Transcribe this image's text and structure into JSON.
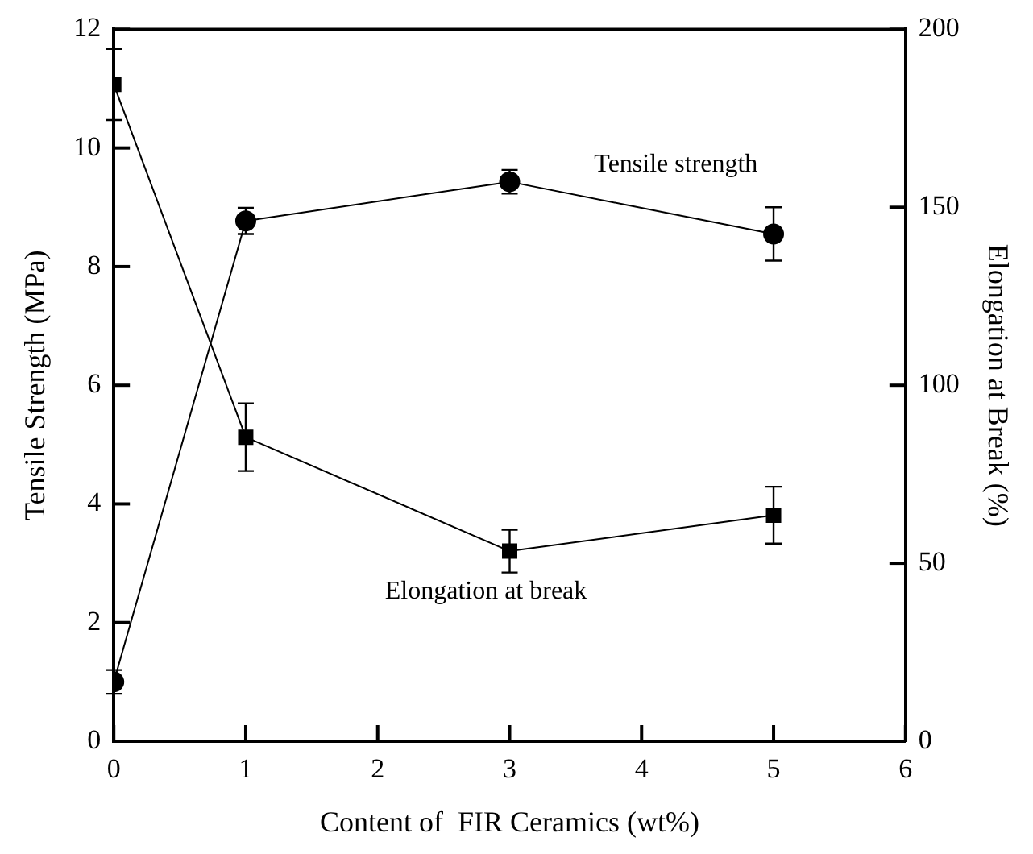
{
  "chart_data": {
    "type": "line",
    "xlabel": "Content of  FIR Ceramics (wt%)",
    "ylabel": "Tensile Strength (MPa)",
    "y2label": "Elongation at Break (%)",
    "xlim": [
      0,
      6
    ],
    "xticks": [
      0,
      1,
      2,
      3,
      4,
      5,
      6
    ],
    "ylim": [
      0,
      12
    ],
    "yticks": [
      0,
      2,
      4,
      6,
      8,
      10,
      12
    ],
    "y2lim": [
      0,
      200
    ],
    "y2ticks": [
      0,
      50,
      100,
      150,
      200
    ],
    "grid": false,
    "legend": false,
    "line_style": "solid",
    "series": [
      {
        "x": [
          0,
          1,
          3,
          5
        ],
        "values": [
          1.0,
          8.77,
          9.43,
          8.55
        ],
        "errors": [
          0.2,
          0.22,
          0.2,
          0.45
        ],
        "color": "#000000",
        "marker": "circle",
        "axis": "y"
      },
      {
        "x": [
          0,
          1,
          3,
          5
        ],
        "values": [
          184.5,
          85.4,
          53.4,
          63.5
        ],
        "errors": [
          10,
          9.5,
          6,
          8
        ],
        "color": "#000000",
        "marker": "square",
        "axis": "y2"
      }
    ],
    "annotations": [
      "Tensile strength",
      "Elongation at break"
    ]
  }
}
